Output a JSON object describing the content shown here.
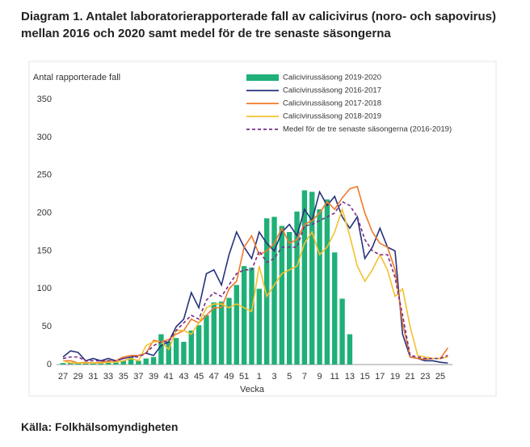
{
  "title": "Diagram 1. Antalet laboratorierapporterade fall av calicivirus (noro- och sapovirus) mellan 2016 och 2020 samt medel för de tre senaste säsongerna",
  "source": "Källa: Folkhälsomyndigheten",
  "chart_data": {
    "type": "combo",
    "y_label": "Antal rapporterade fall",
    "x_label": "Vecka",
    "categories": [
      "27",
      null,
      "29",
      null,
      "31",
      null,
      "33",
      null,
      "35",
      null,
      "37",
      null,
      "39",
      null,
      "41",
      null,
      "43",
      null,
      "45",
      null,
      "47",
      null,
      "49",
      null,
      "51",
      null,
      "1",
      null,
      "3",
      null,
      "5",
      null,
      "7",
      null,
      "9",
      null,
      "11",
      null,
      "13",
      null,
      "15",
      null,
      "17",
      null,
      "19",
      null,
      "21",
      null,
      "23",
      null,
      "25",
      null
    ],
    "ylim": [
      0,
      350
    ],
    "yticks": [
      0,
      50,
      100,
      150,
      200,
      250,
      300,
      350
    ],
    "grid": false,
    "series": [
      {
        "name": "Calicivirussäsong 2019-2020",
        "kind": "bar",
        "color": "#1fb078",
        "values": [
          2,
          2,
          2,
          2,
          2,
          3,
          3,
          4,
          5,
          10,
          5,
          8,
          10,
          40,
          30,
          35,
          30,
          45,
          52,
          65,
          82,
          83,
          88,
          105,
          130,
          128,
          100,
          193,
          195,
          183,
          175,
          202,
          230,
          228,
          205,
          218,
          148,
          87,
          40,
          null,
          null,
          null,
          null,
          null,
          null,
          null,
          null,
          null,
          null,
          null,
          null,
          null
        ]
      },
      {
        "name": "Calicivirussäsong 2016-2017",
        "kind": "line",
        "color": "#26337a",
        "values": [
          10,
          18,
          16,
          5,
          8,
          5,
          8,
          5,
          8,
          10,
          12,
          15,
          12,
          25,
          30,
          50,
          60,
          95,
          75,
          120,
          125,
          105,
          145,
          175,
          155,
          140,
          175,
          160,
          150,
          175,
          185,
          170,
          205,
          190,
          228,
          210,
          222,
          195,
          180,
          195,
          140,
          155,
          180,
          155,
          150,
          40,
          10,
          8,
          5,
          5,
          3,
          2
        ]
      },
      {
        "name": "Calicivirussäsong 2017-2018",
        "kind": "line",
        "color": "#f07a2a",
        "values": [
          5,
          5,
          2,
          3,
          2,
          3,
          5,
          5,
          10,
          12,
          12,
          15,
          32,
          30,
          33,
          40,
          45,
          60,
          55,
          65,
          75,
          75,
          100,
          110,
          155,
          170,
          145,
          150,
          160,
          180,
          160,
          165,
          185,
          190,
          200,
          215,
          205,
          220,
          232,
          235,
          200,
          175,
          160,
          155,
          125,
          55,
          10,
          8,
          7,
          8,
          8,
          22
        ]
      },
      {
        "name": "Calicivirussäsong 2018-2019",
        "kind": "line",
        "color": "#f2c12e",
        "values": [
          5,
          2,
          2,
          2,
          2,
          2,
          3,
          3,
          5,
          8,
          5,
          25,
          30,
          30,
          20,
          45,
          45,
          40,
          55,
          75,
          80,
          80,
          75,
          80,
          75,
          70,
          130,
          90,
          105,
          120,
          125,
          130,
          160,
          175,
          145,
          155,
          175,
          205,
          170,
          130,
          110,
          125,
          145,
          125,
          90,
          100,
          50,
          12,
          10,
          8,
          8,
          10
        ]
      },
      {
        "name": "Medel för de tre senaste säsongerna (2016-2019)",
        "kind": "line",
        "dash": true,
        "color": "#7a2a8a",
        "values": [
          8,
          10,
          10,
          5,
          5,
          5,
          5,
          5,
          8,
          10,
          10,
          15,
          25,
          30,
          30,
          45,
          55,
          65,
          60,
          85,
          95,
          90,
          105,
          120,
          125,
          125,
          150,
          135,
          140,
          155,
          155,
          155,
          183,
          185,
          190,
          195,
          200,
          215,
          210,
          195,
          165,
          150,
          145,
          145,
          115,
          65,
          12,
          10,
          8,
          8,
          8,
          12
        ]
      }
    ]
  }
}
